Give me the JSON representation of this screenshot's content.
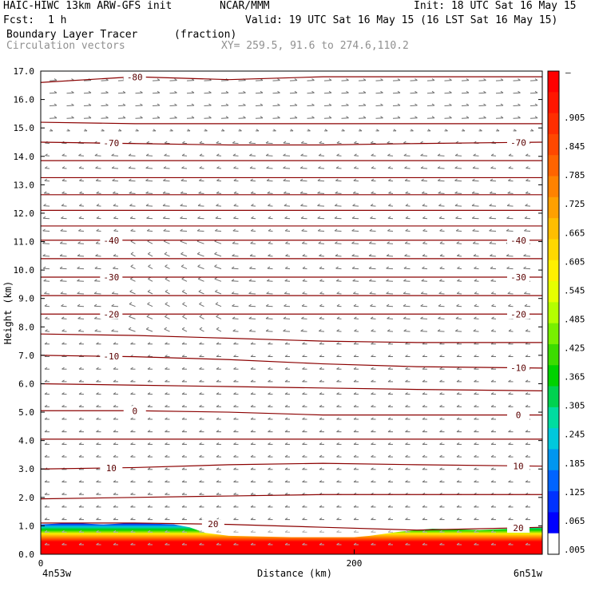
{
  "header": {
    "model": "HAIC-HIWC 13km ARW-GFS init",
    "org": "NCAR/MMM",
    "init": "Init: 18 UTC Sat 16 May 15",
    "fcst_label": "Fcst:",
    "fcst_value": "1 h",
    "valid": "Valid: 19 UTC Sat 16 May 15 (16 LST Sat 16 May 15)",
    "field": "Boundary Layer Tracer",
    "field_units": "(fraction)",
    "overlay": "Circulation vectors",
    "xy": "XY= 259.5, 91.6 to 274.6,110.2"
  },
  "chart_data": {
    "type": "heatmap",
    "ylabel": "Height (km)",
    "xlabel": "Distance (km)",
    "ylim": [
      0,
      17
    ],
    "xlim": [
      0,
      320
    ],
    "yticks": [
      "0.0",
      "1.0",
      "2.0",
      "3.0",
      "4.0",
      "5.0",
      "6.0",
      "7.0",
      "8.0",
      "9.0",
      "10.0",
      "11.0",
      "12.0",
      "13.0",
      "14.0",
      "15.0",
      "16.0",
      "17.0"
    ],
    "xticks": [
      "0",
      "200"
    ],
    "x_end_labels": {
      "left": "4n53w",
      "right": "6n51w"
    },
    "colorbar": {
      "labels": [
        ".905",
        ".845",
        ".785",
        ".725",
        ".665",
        ".605",
        ".545",
        ".485",
        ".425",
        ".365",
        ".305",
        ".245",
        ".185",
        ".125",
        ".065",
        ".005"
      ],
      "top_label": "–",
      "colors": [
        "#ff0000",
        "#ff1600",
        "#ff2e00",
        "#ff4800",
        "#ff6400",
        "#ff8200",
        "#ffa000",
        "#ffbe00",
        "#ffd800",
        "#fff000",
        "#e6ff00",
        "#b4ff00",
        "#78f000",
        "#3cdc00",
        "#00d200",
        "#00d250",
        "#00dca0",
        "#00c8dc",
        "#0096f0",
        "#0064ff",
        "#0032ff",
        "#0000ff",
        "#ffffff"
      ]
    },
    "contours": [
      {
        "label": "-80",
        "y": [
          16.6,
          16.8,
          16.7,
          16.8,
          16.8,
          16.8
        ]
      },
      {
        "label": "",
        "y": [
          15.2,
          15.15,
          15.15,
          15.15,
          15.15,
          15.15
        ]
      },
      {
        "label": "-70",
        "y": [
          14.5,
          14.45,
          14.4,
          14.4,
          14.45,
          14.5
        ]
      },
      {
        "label": "",
        "y": [
          13.85,
          13.85,
          13.85,
          13.85,
          13.85,
          13.85
        ]
      },
      {
        "label": "",
        "y": [
          13.25,
          13.25,
          13.25,
          13.25,
          13.25,
          13.25
        ]
      },
      {
        "label": "",
        "y": [
          12.65,
          12.65,
          12.65,
          12.65,
          12.65,
          12.65
        ]
      },
      {
        "label": "",
        "y": [
          12.1,
          12.1,
          12.1,
          12.1,
          12.1,
          12.1
        ]
      },
      {
        "label": "",
        "y": [
          11.55,
          11.55,
          11.55,
          11.55,
          11.55,
          11.55
        ]
      },
      {
        "label": "-40",
        "y": [
          11.05,
          11.05,
          11.05,
          11.05,
          11.05,
          11.05
        ]
      },
      {
        "label": "",
        "y": [
          10.4,
          10.4,
          10.4,
          10.4,
          10.4,
          10.4
        ]
      },
      {
        "label": "-30",
        "y": [
          9.75,
          9.75,
          9.75,
          9.75,
          9.75,
          9.75
        ]
      },
      {
        "label": "",
        "y": [
          9.1,
          9.1,
          9.1,
          9.1,
          9.1,
          9.1
        ]
      },
      {
        "label": "-20",
        "y": [
          8.45,
          8.45,
          8.45,
          8.45,
          8.45,
          8.45
        ]
      },
      {
        "label": "",
        "y": [
          7.75,
          7.7,
          7.6,
          7.5,
          7.45,
          7.45
        ]
      },
      {
        "label": "-10",
        "y": [
          7.0,
          6.95,
          6.85,
          6.7,
          6.6,
          6.55
        ]
      },
      {
        "label": "",
        "y": [
          6.0,
          5.95,
          5.9,
          5.85,
          5.8,
          5.75
        ]
      },
      {
        "label": "0",
        "y": [
          5.05,
          5.05,
          5.0,
          4.9,
          4.9,
          4.9
        ]
      },
      {
        "label": "",
        "y": [
          4.05,
          4.05,
          4.05,
          4.05,
          4.05,
          4.05
        ]
      },
      {
        "label": "10",
        "y": [
          3.0,
          3.05,
          3.15,
          3.2,
          3.15,
          3.1
        ]
      },
      {
        "label": "",
        "y": [
          1.95,
          2.0,
          2.05,
          2.1,
          2.1,
          2.1
        ]
      },
      {
        "label": "20",
        "y": [
          1.1,
          1.1,
          1.05,
          0.95,
          0.85,
          0.95
        ]
      }
    ],
    "contour_x": [
      0,
      60,
      120,
      180,
      240,
      320
    ],
    "boundary_layer_top": {
      "x": [
        0,
        20,
        40,
        60,
        85,
        95,
        105,
        120,
        160,
        200,
        210,
        230,
        250,
        280,
        320
      ],
      "y": [
        1.05,
        1.1,
        1.05,
        1.1,
        1.05,
        0.95,
        0.75,
        0.65,
        0.6,
        0.6,
        0.65,
        0.8,
        0.9,
        0.85,
        0.95
      ]
    }
  }
}
